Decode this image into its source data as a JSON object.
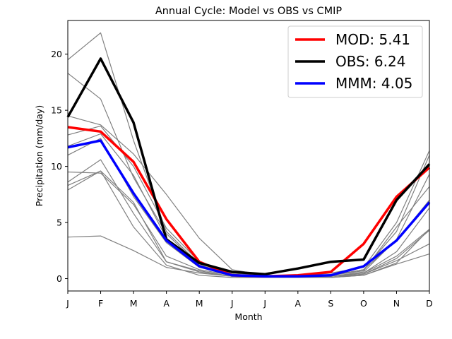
{
  "chart_data": {
    "type": "line",
    "title": "Annual Cycle: Model vs OBS vs CMIP",
    "xlabel": "Month",
    "ylabel": "Precipitation (mm/day)",
    "categories": [
      "J",
      "F",
      "M",
      "A",
      "M",
      "J",
      "J",
      "A",
      "S",
      "O",
      "N",
      "D"
    ],
    "ylim": [
      -1.1,
      23
    ],
    "yticks": [
      0,
      5,
      10,
      15,
      20
    ],
    "grid": false,
    "legend_position": "top-right",
    "ensemble_color": "#808080",
    "ensemble_members": [
      [
        19.5,
        21.9,
        12.3,
        4.2,
        1.3,
        0.5,
        0.3,
        0.2,
        0.3,
        0.8,
        4.2,
        11.0
      ],
      [
        18.3,
        16.0,
        9.0,
        4.0,
        1.2,
        0.4,
        0.2,
        0.2,
        0.2,
        0.6,
        3.5,
        9.3
      ],
      [
        14.5,
        13.7,
        11.1,
        7.5,
        3.6,
        0.8,
        0.3,
        0.2,
        0.5,
        1.0,
        5.0,
        11.4
      ],
      [
        12.8,
        13.6,
        10.0,
        4.5,
        1.5,
        0.5,
        0.3,
        0.2,
        0.3,
        0.7,
        4.6,
        8.2
      ],
      [
        11.8,
        12.9,
        9.2,
        3.6,
        1.2,
        0.4,
        0.2,
        0.2,
        0.3,
        0.8,
        3.4,
        7.0
      ],
      [
        11.0,
        12.5,
        7.3,
        3.2,
        1.0,
        0.3,
        0.2,
        0.1,
        0.2,
        0.5,
        2.4,
        6.3
      ],
      [
        9.5,
        9.4,
        6.6,
        2.0,
        0.8,
        0.3,
        0.2,
        0.1,
        0.2,
        0.5,
        2.0,
        4.4
      ],
      [
        8.6,
        10.6,
        5.8,
        1.5,
        0.6,
        0.2,
        0.1,
        0.1,
        0.2,
        0.4,
        1.8,
        4.3
      ],
      [
        8.3,
        9.6,
        6.8,
        1.5,
        0.7,
        0.2,
        0.1,
        0.1,
        0.1,
        0.4,
        1.6,
        3.1
      ],
      [
        7.9,
        9.6,
        4.6,
        1.2,
        0.3,
        0.1,
        0.1,
        0.1,
        0.1,
        0.3,
        1.3,
        2.2
      ],
      [
        3.7,
        3.8,
        2.5,
        1.0,
        0.5,
        0.2,
        0.1,
        0.1,
        0.1,
        0.3,
        1.4,
        4.4
      ]
    ],
    "series": [
      {
        "name": "MOD: 5.41",
        "color": "#ff0000",
        "values": [
          13.5,
          13.1,
          10.4,
          5.3,
          1.5,
          0.3,
          0.2,
          0.3,
          0.6,
          3.1,
          7.3,
          9.9
        ]
      },
      {
        "name": "OBS: 6.24",
        "color": "#000000",
        "values": [
          14.4,
          19.6,
          13.9,
          3.5,
          1.4,
          0.6,
          0.4,
          0.9,
          1.5,
          1.7,
          7.0,
          10.2
        ]
      },
      {
        "name": "MMM: 4.05",
        "color": "#0000ff",
        "values": [
          11.7,
          12.3,
          7.6,
          3.4,
          1.1,
          0.3,
          0.2,
          0.2,
          0.3,
          1.1,
          3.4,
          6.8
        ]
      }
    ]
  }
}
